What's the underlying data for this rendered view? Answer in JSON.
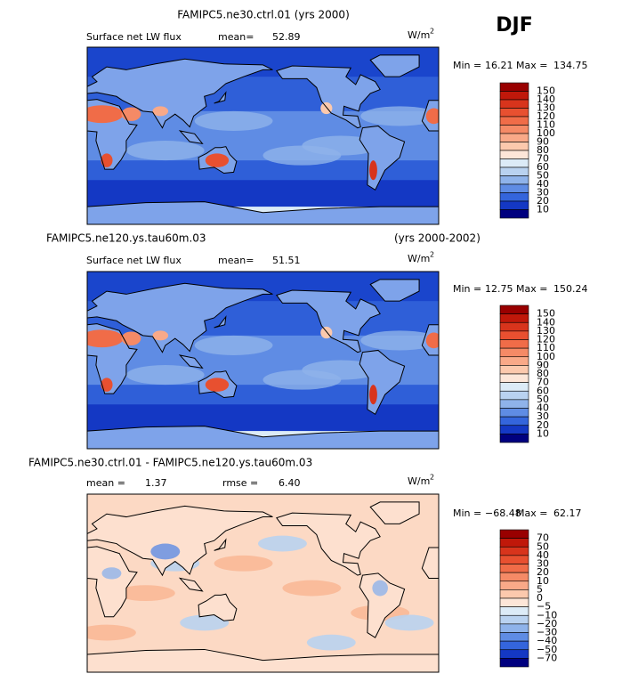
{
  "season": "DJF",
  "colorbar_colors": [
    "#990000",
    "#c0180a",
    "#d8341c",
    "#e85030",
    "#f06c48",
    "#f58a66",
    "#f9a988",
    "#fcc9ad",
    "#fde6d8",
    "#dcebf7",
    "#b9d2f0",
    "#8fb3ea",
    "#5f8ce4",
    "#3465dc",
    "#1438c4",
    "#00007f"
  ],
  "panels": [
    {
      "title": "FAMIPC5.ne30.ctrl.01 (yrs 2000)",
      "variable": "Surface net LW flux",
      "stat1_label": "mean=",
      "stat1_value": "52.89",
      "units": "W/m",
      "units_exponent": "2",
      "min_label": "Min =",
      "min": "16.21",
      "max_label": "Max =",
      "max": "134.75",
      "levels": [
        150,
        140,
        130,
        120,
        110,
        100,
        90,
        80,
        70,
        60,
        50,
        40,
        30,
        20,
        10
      ]
    },
    {
      "title": "FAMIPC5.ne120.ys.tau60m.03",
      "title_right": "(yrs 2000-2002)",
      "variable": "Surface net LW flux",
      "stat1_label": "mean=",
      "stat1_value": "51.51",
      "units": "W/m",
      "units_exponent": "2",
      "min_label": "Min =",
      "min": "12.75",
      "max_label": "Max =",
      "max": "150.24",
      "levels": [
        150,
        140,
        130,
        120,
        110,
        100,
        90,
        80,
        70,
        60,
        50,
        40,
        30,
        20,
        10
      ]
    },
    {
      "title": "FAMIPC5.ne30.ctrl.01 - FAMIPC5.ne120.ys.tau60m.03",
      "stat1_label": "mean =",
      "stat1_value": "1.37",
      "stat2_label": "rmse =",
      "stat2_value": "6.40",
      "units": "W/m",
      "units_exponent": "2",
      "min_label": "Min =",
      "min": "−68.48",
      "max_label": "Max =",
      "max": "62.17",
      "levels": [
        70,
        50,
        40,
        30,
        20,
        10,
        5,
        0,
        "−5",
        "−10",
        "−20",
        "−30",
        "−40",
        "−50",
        "−70"
      ]
    }
  ]
}
